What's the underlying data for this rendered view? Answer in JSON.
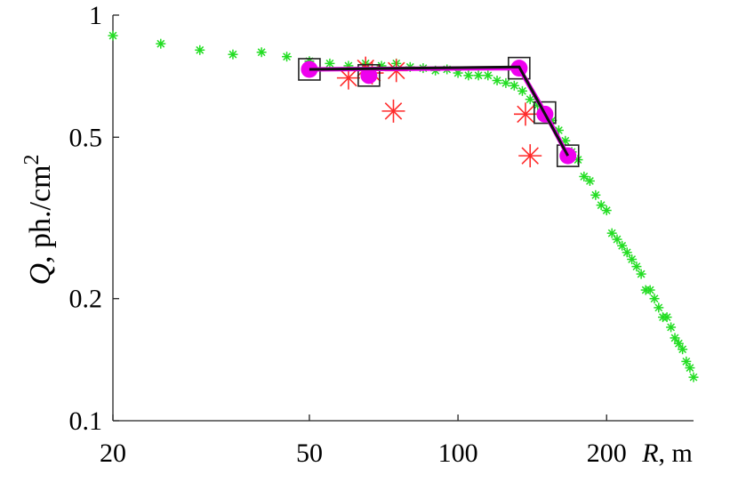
{
  "chart_data": {
    "type": "scatter",
    "title": "",
    "xlabel": {
      "var": "R",
      "unit": ", m"
    },
    "ylabel": {
      "var": "Q",
      "unit": ", ph./cm",
      "sup": "2"
    },
    "xscale": "log",
    "yscale": "log",
    "xlim": [
      20,
      300
    ],
    "ylim": [
      0.1,
      1
    ],
    "xticks": [
      20,
      50,
      100,
      200
    ],
    "xtick_labels": [
      "20",
      "50",
      "100",
      "200"
    ],
    "yticks": [
      0.1,
      0.2,
      0.5,
      1
    ],
    "ytick_labels": [
      "0.1",
      "0.2",
      "0.5",
      "1"
    ],
    "grid": false,
    "legend": "none",
    "series": [
      {
        "marker": "green-asterisk-small",
        "color": "#22dd22",
        "points": [
          [
            20,
            0.89
          ],
          [
            25,
            0.85
          ],
          [
            30,
            0.82
          ],
          [
            35,
            0.8
          ],
          [
            40,
            0.81
          ],
          [
            45,
            0.79
          ],
          [
            50,
            0.77
          ],
          [
            55,
            0.76
          ],
          [
            60,
            0.75
          ],
          [
            65,
            0.76
          ],
          [
            70,
            0.75
          ],
          [
            75,
            0.76
          ],
          [
            80,
            0.745
          ],
          [
            85,
            0.74
          ],
          [
            90,
            0.73
          ],
          [
            95,
            0.735
          ],
          [
            100,
            0.72
          ],
          [
            105,
            0.71
          ],
          [
            110,
            0.71
          ],
          [
            115,
            0.71
          ],
          [
            120,
            0.69
          ],
          [
            125,
            0.68
          ],
          [
            130,
            0.67
          ],
          [
            135,
            0.65
          ],
          [
            140,
            0.62
          ],
          [
            145,
            0.6
          ],
          [
            150,
            0.58
          ],
          [
            155,
            0.55
          ],
          [
            160,
            0.52
          ],
          [
            165,
            0.49
          ],
          [
            170,
            0.46
          ],
          [
            175,
            0.44
          ],
          [
            180,
            0.4
          ],
          [
            185,
            0.39
          ],
          [
            190,
            0.36
          ],
          [
            195,
            0.34
          ],
          [
            200,
            0.33
          ],
          [
            205,
            0.29
          ],
          [
            210,
            0.28
          ],
          [
            215,
            0.27
          ],
          [
            220,
            0.26
          ],
          [
            225,
            0.25
          ],
          [
            230,
            0.24
          ],
          [
            235,
            0.23
          ],
          [
            240,
            0.21
          ],
          [
            245,
            0.21
          ],
          [
            250,
            0.2
          ],
          [
            255,
            0.19
          ],
          [
            260,
            0.18
          ],
          [
            265,
            0.18
          ],
          [
            270,
            0.17
          ],
          [
            275,
            0.16
          ],
          [
            280,
            0.155
          ],
          [
            285,
            0.15
          ],
          [
            290,
            0.14
          ],
          [
            295,
            0.135
          ],
          [
            300,
            0.128
          ]
        ]
      },
      {
        "marker": "red-asterisk-large",
        "color": "#ff2a2a",
        "points": [
          [
            60,
            0.7
          ],
          [
            65,
            0.74
          ],
          [
            67,
            0.72
          ],
          [
            75,
            0.73
          ],
          [
            74,
            0.58
          ],
          [
            137,
            0.57
          ],
          [
            140,
            0.45
          ]
        ]
      },
      {
        "marker": "black-square-open",
        "color": "#222222",
        "points": [
          [
            50,
            0.735
          ],
          [
            66,
            0.71
          ],
          [
            133,
            0.74
          ],
          [
            150,
            0.575
          ],
          [
            167,
            0.45
          ]
        ]
      },
      {
        "marker": "magenta-circle-filled",
        "color": "#ee00ee",
        "points": [
          [
            50,
            0.735
          ],
          [
            66,
            0.71
          ],
          [
            133,
            0.74
          ],
          [
            150,
            0.57
          ],
          [
            167,
            0.45
          ]
        ]
      },
      {
        "type": "line",
        "color": "#ee00ee",
        "points": [
          [
            50,
            0.735
          ],
          [
            133,
            0.74
          ],
          [
            150,
            0.575
          ],
          [
            167,
            0.45
          ]
        ]
      },
      {
        "type": "line",
        "color": "#111111",
        "points": [
          [
            50,
            0.735
          ],
          [
            133,
            0.745
          ],
          [
            167,
            0.45
          ]
        ]
      }
    ]
  }
}
